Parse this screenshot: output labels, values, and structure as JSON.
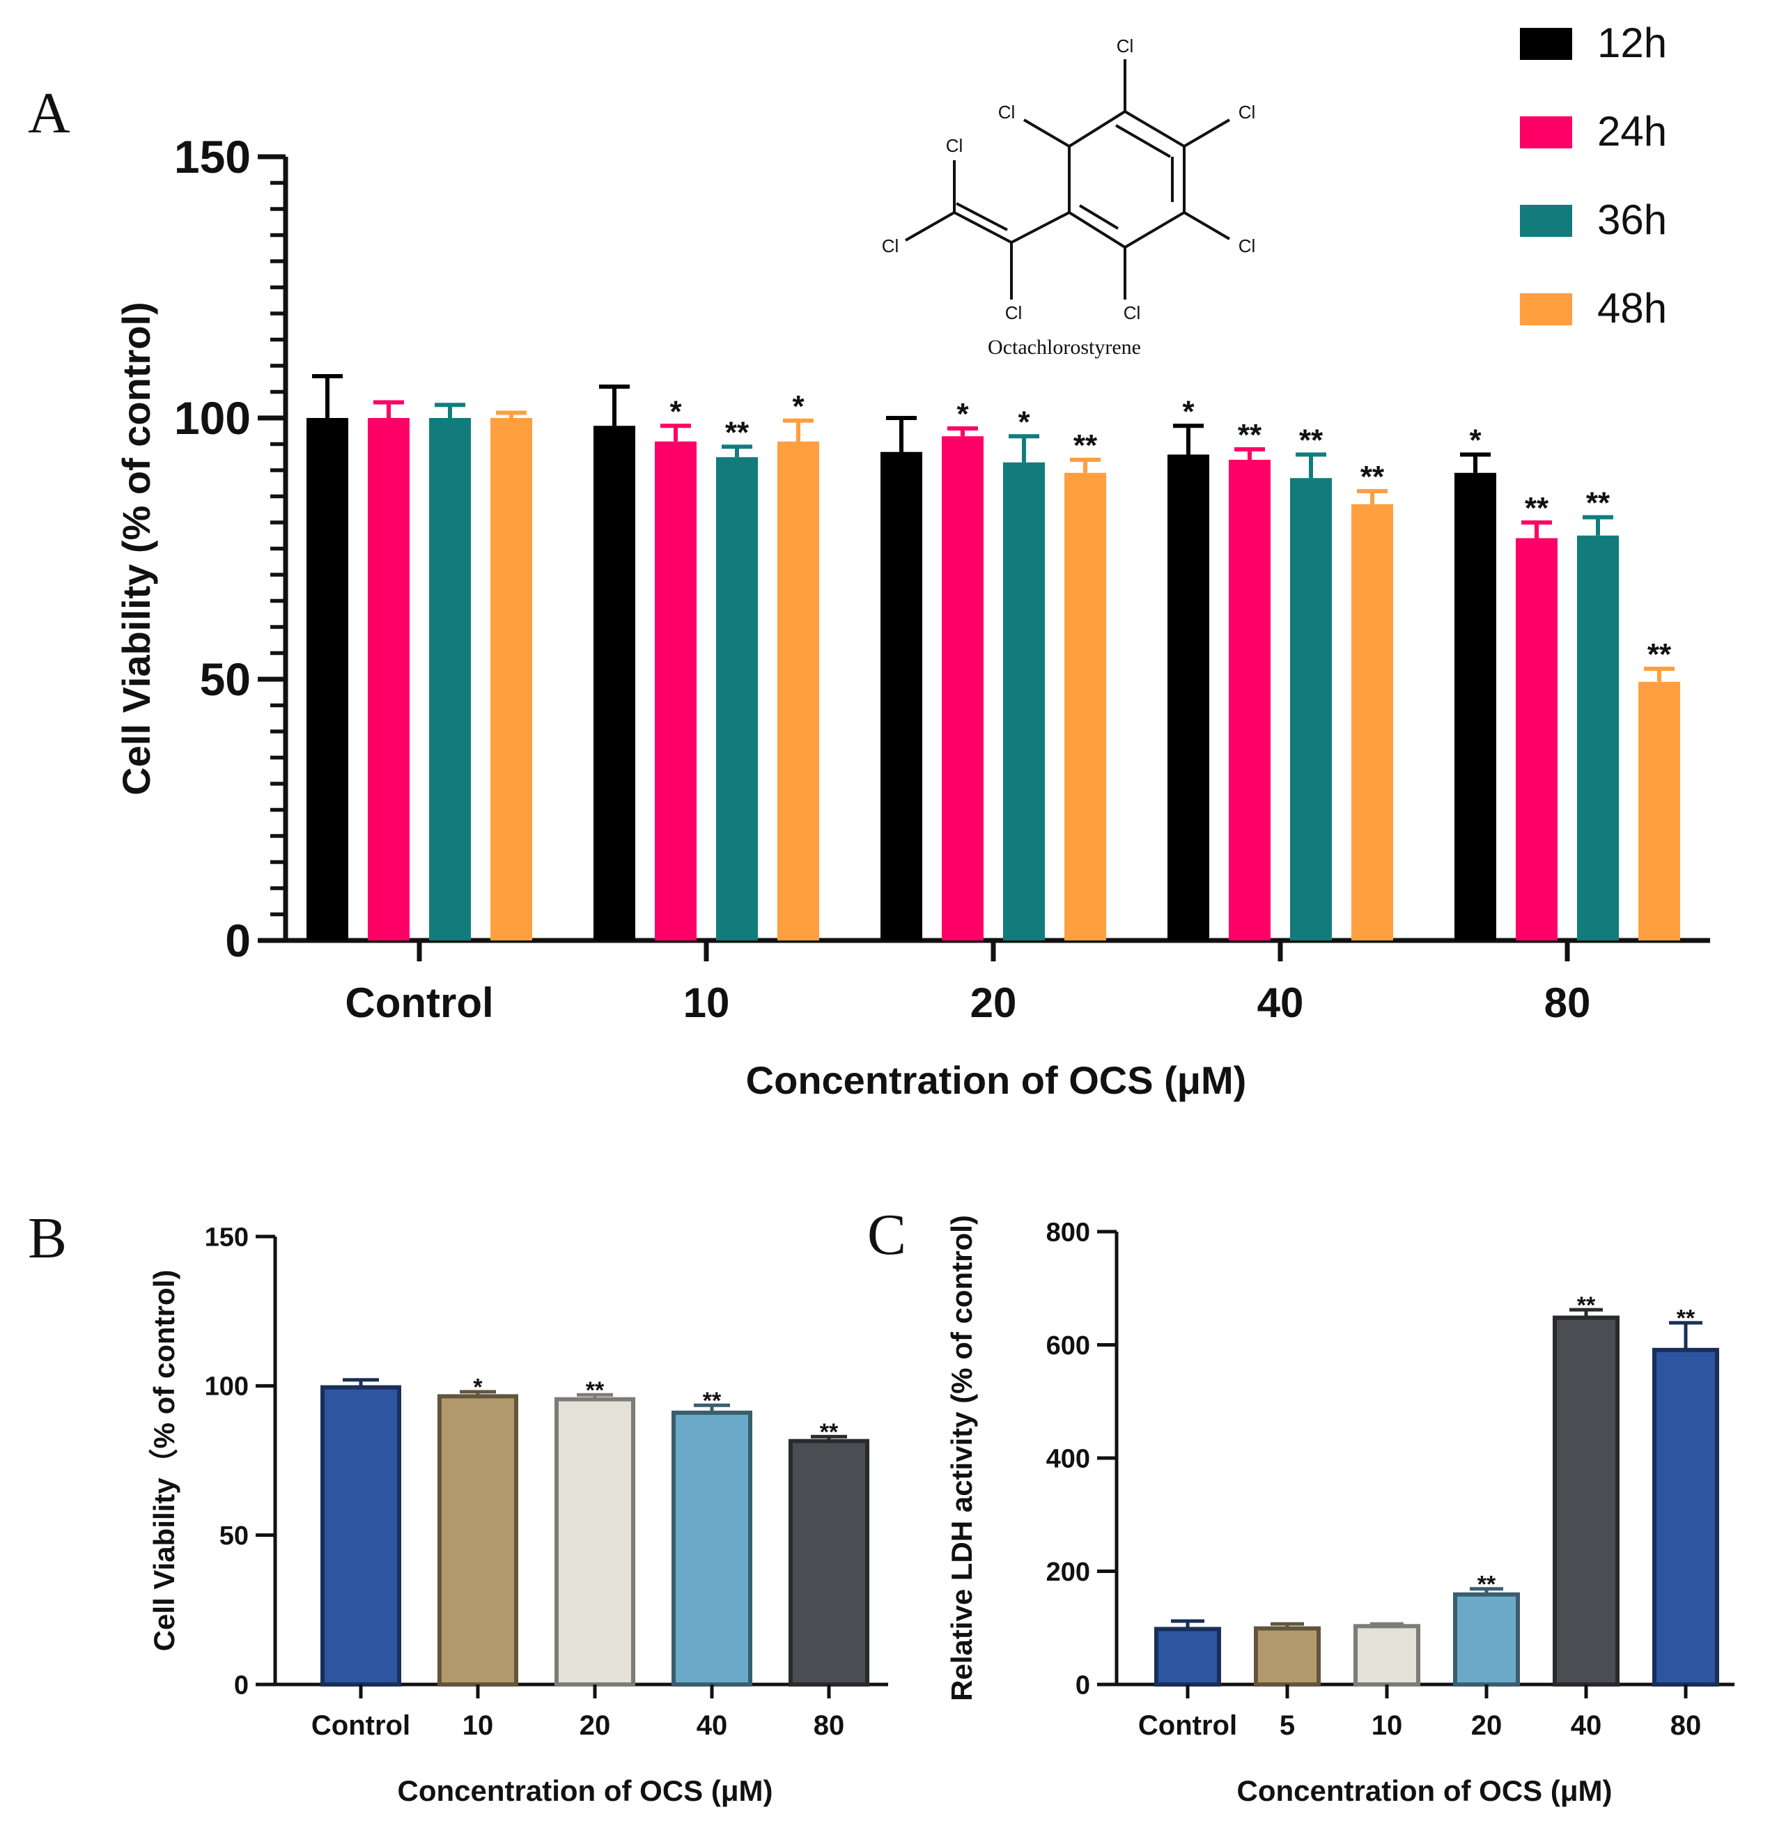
{
  "panels": {
    "a": "A",
    "b": "B",
    "c": "C"
  },
  "molecule": {
    "name": "Octachlorostyrene",
    "atoms": [
      "Cl",
      "Cl",
      "Cl",
      "Cl",
      "Cl",
      "Cl",
      "Cl",
      "Cl"
    ]
  },
  "chart_data": [
    {
      "id": "A",
      "type": "bar",
      "title": "",
      "xlabel": "Concentration of OCS (μM)",
      "ylabel": "Cell Viability (% of control)",
      "ylim": [
        0,
        150
      ],
      "yticks": [
        "0",
        "50",
        "100",
        "150"
      ],
      "categories": [
        "Control",
        "10",
        "20",
        "40",
        "80"
      ],
      "legend_position": "top-right",
      "series": [
        {
          "name": "12h",
          "color": "#000000",
          "values": [
            100,
            98.5,
            93.5,
            93,
            89.5
          ],
          "errors": [
            8,
            7.5,
            6.5,
            5.5,
            3.5
          ],
          "sig": [
            "",
            "",
            "",
            "*",
            "*"
          ]
        },
        {
          "name": "24h",
          "color": "#ff0066",
          "values": [
            100,
            95.5,
            96.5,
            92,
            77
          ],
          "errors": [
            3,
            3,
            1.5,
            2,
            3
          ],
          "sig": [
            "",
            "*",
            "*",
            "**",
            "**"
          ]
        },
        {
          "name": "36h",
          "color": "#127c7c",
          "values": [
            100,
            92.5,
            91.5,
            88.5,
            77.5
          ],
          "errors": [
            2.5,
            2,
            5,
            4.5,
            3.5
          ],
          "sig": [
            "",
            "**",
            "*",
            "**",
            "**"
          ]
        },
        {
          "name": "48h",
          "color": "#ff9f40",
          "values": [
            100,
            95.5,
            89.5,
            83.5,
            49.5
          ],
          "errors": [
            1,
            4,
            2.5,
            2.5,
            2.5
          ],
          "sig": [
            "",
            "*",
            "**",
            "**",
            "**"
          ]
        }
      ]
    },
    {
      "id": "B",
      "type": "bar",
      "title": "",
      "xlabel": "Concentration of OCS (μM)",
      "ylabel": "Cell Viability（% of control)",
      "ylim": [
        0,
        150
      ],
      "yticks": [
        "0",
        "50",
        "100",
        "150"
      ],
      "categories": [
        "Control",
        "10",
        "20",
        "40",
        "80"
      ],
      "values": [
        99.5,
        96.5,
        95.5,
        91,
        81.5
      ],
      "errors": [
        2.5,
        1.5,
        1.5,
        2.5,
        1.5
      ],
      "colors": [
        "#2d55a0",
        "#b39a6e",
        "#e4e2d8",
        "#6aaac8",
        "#4a4d51"
      ],
      "sig": [
        "",
        "*",
        "**",
        "**",
        "**"
      ]
    },
    {
      "id": "C",
      "type": "bar",
      "title": "",
      "xlabel": "Concentration of OCS (μM)",
      "ylabel": "Relative LDH activity (% of control)",
      "ylim": [
        0,
        800
      ],
      "yticks": [
        "0",
        "200",
        "400",
        "600",
        "800"
      ],
      "categories": [
        "Control",
        "5",
        "10",
        "20",
        "40",
        "80"
      ],
      "values": [
        98,
        99,
        103,
        159,
        648,
        591
      ],
      "errors": [
        14,
        8,
        4,
        10,
        14,
        48
      ],
      "colors": [
        "#2d55a0",
        "#b39a6e",
        "#e4e2d8",
        "#6aaac8",
        "#4a4d51",
        "#2d55a0"
      ],
      "sig": [
        "",
        "",
        "",
        "**",
        "**",
        "**"
      ]
    }
  ]
}
